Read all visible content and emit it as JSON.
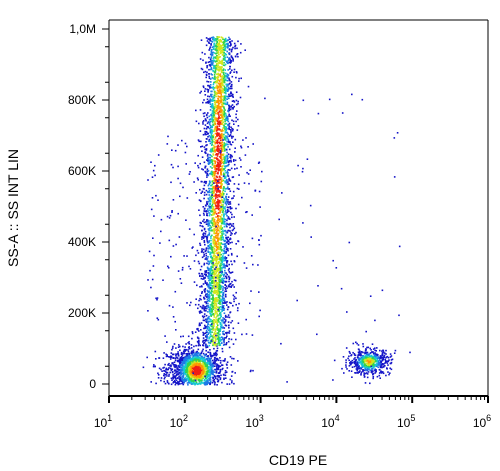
{
  "chart_data": {
    "type": "scatter",
    "subtype": "flow-cytometry-density-dot-plot",
    "title": "",
    "xlabel": "CD19 PE",
    "ylabel": "SS-A :: SS INT LIN",
    "x_scale": "log",
    "y_scale": "linear",
    "xlim": [
      10,
      1000000
    ],
    "ylim": [
      0,
      1000000
    ],
    "grid": false,
    "legend": "none",
    "x_ticks": [
      {
        "value": 10,
        "base": "10",
        "exp": "1"
      },
      {
        "value": 100,
        "base": "10",
        "exp": "2"
      },
      {
        "value": 1000,
        "base": "10",
        "exp": "3"
      },
      {
        "value": 10000,
        "base": "10",
        "exp": "4"
      },
      {
        "value": 100000,
        "base": "10",
        "exp": "5"
      },
      {
        "value": 1000000,
        "base": "10",
        "exp": "6"
      }
    ],
    "y_ticks": [
      {
        "value": 0,
        "label": "0"
      },
      {
        "value": 200000,
        "label": "200K"
      },
      {
        "value": 400000,
        "label": "400K"
      },
      {
        "value": 600000,
        "label": "600K"
      },
      {
        "value": 800000,
        "label": "800K"
      },
      {
        "value": 1000000,
        "label": "1,0M"
      }
    ],
    "density_colors": [
      "#1414c8",
      "#1e78e6",
      "#14c8d2",
      "#32d24b",
      "#d2e61e",
      "#ff9600",
      "#f01e14"
    ],
    "populations": [
      {
        "x": [
          90,
          250
        ],
        "y": [
          20000,
          120000
        ],
        "density": "high",
        "description_only": false
      },
      {
        "x": [
          150,
          400
        ],
        "y": [
          120000,
          980000
        ],
        "density": "medium",
        "description_only": false
      },
      {
        "x": [
          15000,
          60000
        ],
        "y": [
          30000,
          110000
        ],
        "density": "medium",
        "description_only": false
      },
      {
        "x": [
          30,
          3000
        ],
        "y": [
          0,
          600000
        ],
        "density": "sparse",
        "description_only": false
      }
    ]
  }
}
